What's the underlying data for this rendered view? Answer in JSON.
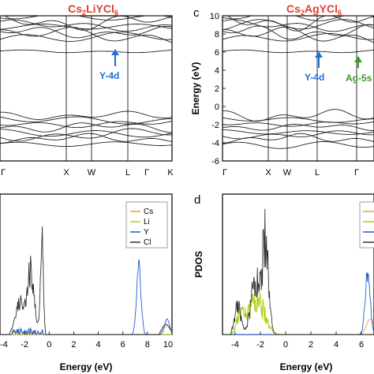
{
  "figure": {
    "panel_a": {
      "title_base": "Cs",
      "title_sub1": "2",
      "title_mid": "LiYCl",
      "title_sub2": "6"
    },
    "panel_c": {
      "letter": "c",
      "title_base": "Cs",
      "title_sub1": "2",
      "title_mid": "AgYCl",
      "title_sub2": "6",
      "ylabel": "Energy (eV)"
    },
    "panel_b": {
      "xlabel": "Energy (eV)"
    },
    "panel_d": {
      "letter": "d",
      "ylabel": "PDOS",
      "xlabel": "Energy (eV)"
    },
    "annotations": {
      "y4d_a": "Y-4d",
      "y4d_c": "Y-4d",
      "ag5s": "Ag-5s"
    },
    "colors": {
      "cs": "#e8a040",
      "li": "#a8d000",
      "y": "#1f5fd0",
      "cl": "#333333",
      "title_red": "#e04030",
      "ann_blue": "#1f6fd0",
      "ann_green": "#3c9a28"
    }
  },
  "chart_data": [
    {
      "id": "a",
      "type": "line",
      "title": "Cs2LiYCl6",
      "kpoints": [
        "Γ",
        "X",
        "W",
        "L",
        "Γ",
        "K"
      ],
      "ylim": [
        -6,
        10
      ],
      "note": "band structure"
    },
    {
      "id": "c",
      "type": "line",
      "title": "Cs2AgYCl6",
      "ylabel": "Energy (eV)",
      "kpoints": [
        "Γ",
        "X",
        "W",
        "L",
        "Γ"
      ],
      "yticks": [
        "10",
        "8",
        "6",
        "4",
        "2",
        "0",
        "-2",
        "-4",
        "-6"
      ],
      "ylim": [
        -6,
        10
      ]
    },
    {
      "id": "b",
      "type": "line",
      "xlabel": "Energy (eV)",
      "xticks": [
        "-4",
        "-2",
        "0",
        "2",
        "4",
        "6",
        "8",
        "10"
      ],
      "xlim": [
        -4,
        10
      ],
      "legend": [
        "Cs",
        "Li",
        "Y",
        "Cl"
      ],
      "legend_position": "top-right"
    },
    {
      "id": "d",
      "type": "line",
      "ylabel": "PDOS",
      "xlabel": "Energy (eV)",
      "xticks": [
        "-4",
        "-2",
        "0",
        "2",
        "4",
        "6"
      ],
      "xlim": [
        -5,
        7
      ]
    }
  ]
}
